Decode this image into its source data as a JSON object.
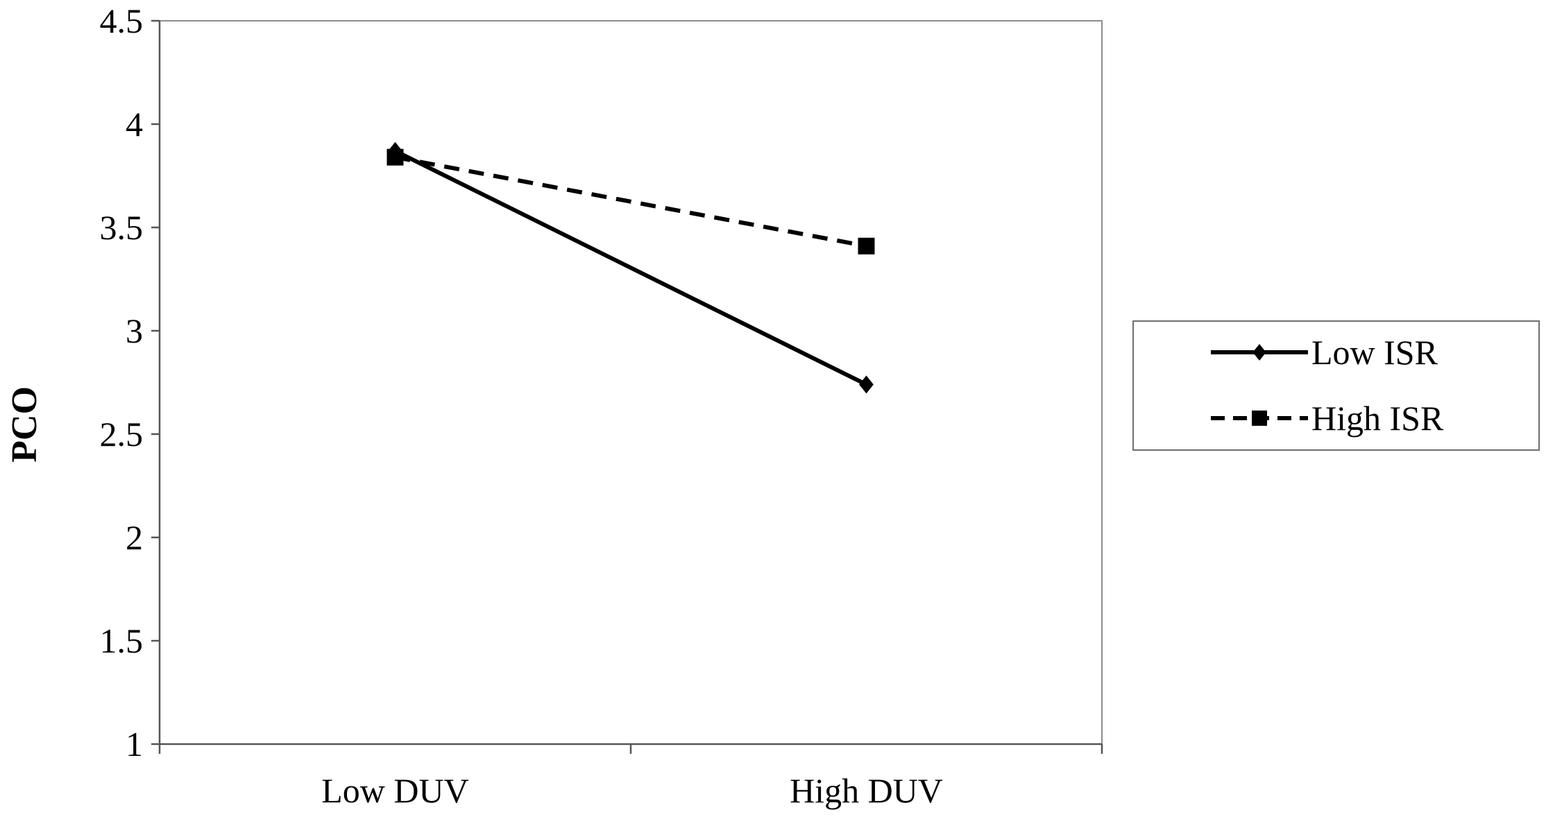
{
  "chart_data": {
    "type": "line",
    "title": "",
    "xlabel": "",
    "ylabel": "PCO",
    "categories": [
      "Low DUV",
      "High DUV"
    ],
    "ylim": [
      1,
      4.5
    ],
    "yticks": [
      "1",
      "1.5",
      "2",
      "2.5",
      "3",
      "3.5",
      "4",
      "4.5"
    ],
    "grid": false,
    "legend_position": "right",
    "series": [
      {
        "name": "Low ISR",
        "values": [
          3.87,
          2.74
        ],
        "line_style": "solid",
        "marker": "diamond",
        "color": "#000000"
      },
      {
        "name": "High ISR",
        "values": [
          3.84,
          3.41
        ],
        "line_style": "dashed",
        "marker": "square",
        "color": "#000000"
      }
    ]
  }
}
